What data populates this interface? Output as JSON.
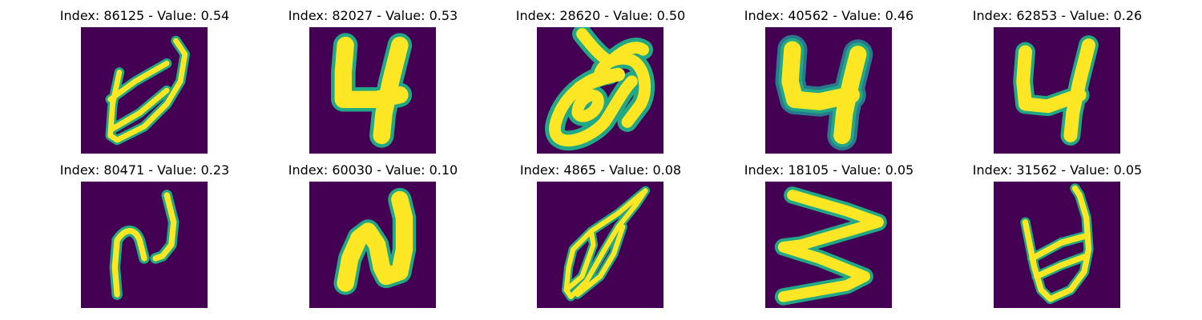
{
  "colors": {
    "background": "#440154",
    "stroke_core": "#fde725",
    "stroke_mid": "#7ad151",
    "stroke_edge": "#22a884",
    "stroke_fringe": "#2a788e"
  },
  "panels": [
    {
      "title": "Index: 86125 - Value: 0.54",
      "glyph": "handwritten-glyph-loop-u"
    },
    {
      "title": "Index: 82027 - Value: 0.53",
      "glyph": "handwritten-glyph-4"
    },
    {
      "title": "Index: 28620 - Value: 0.50",
      "glyph": "handwritten-glyph-curl"
    },
    {
      "title": "Index: 40562 - Value: 0.46",
      "glyph": "handwritten-glyph-4"
    },
    {
      "title": "Index: 62853 - Value: 0.26",
      "glyph": "handwritten-glyph-4"
    },
    {
      "title": "Index: 80471 - Value: 0.23",
      "glyph": "handwritten-glyph-n"
    },
    {
      "title": "Index: 60030 - Value: 0.10",
      "glyph": "handwritten-glyph-n"
    },
    {
      "title": "Index: 4865 - Value: 0.08",
      "glyph": "handwritten-glyph-leaf"
    },
    {
      "title": "Index: 18105 - Value: 0.05",
      "glyph": "handwritten-glyph-zigzag"
    },
    {
      "title": "Index: 31562 - Value: 0.05",
      "glyph": "handwritten-glyph-loop-u"
    }
  ]
}
